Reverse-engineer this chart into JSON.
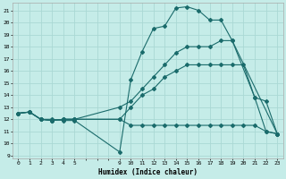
{
  "title": "",
  "xlabel": "Humidex (Indice chaleur)",
  "bg_color": "#c5ece8",
  "grid_major_color": "#aad8d4",
  "grid_minor_color": "#bce4e0",
  "line_color": "#1a6b6b",
  "xlim": [
    -0.5,
    23.5
  ],
  "ylim": [
    8.8,
    21.6
  ],
  "xticks_labeled": [
    0,
    1,
    2,
    3,
    4,
    5,
    9,
    10,
    11,
    12,
    13,
    14,
    15,
    16,
    17,
    18,
    19,
    20,
    21,
    22,
    23
  ],
  "yticks": [
    9,
    10,
    11,
    12,
    13,
    14,
    15,
    16,
    17,
    18,
    19,
    20,
    21
  ],
  "lines": [
    {
      "x": [
        0,
        1,
        2,
        3,
        4,
        5,
        9,
        10,
        11,
        12,
        13,
        14,
        15,
        16,
        17,
        18,
        19,
        23
      ],
      "y": [
        12.5,
        12.6,
        12.0,
        12.0,
        11.9,
        11.9,
        9.3,
        15.3,
        17.6,
        19.5,
        19.7,
        21.2,
        21.3,
        21.0,
        20.2,
        20.2,
        18.5,
        10.8
      ]
    },
    {
      "x": [
        0,
        1,
        2,
        3,
        4,
        5,
        9,
        10,
        11,
        12,
        13,
        14,
        15,
        16,
        17,
        18,
        19,
        21,
        22,
        23
      ],
      "y": [
        12.5,
        12.6,
        12.0,
        11.9,
        12.0,
        12.0,
        13.0,
        13.5,
        14.5,
        15.5,
        16.5,
        17.5,
        18.0,
        18.0,
        18.0,
        18.5,
        18.5,
        13.8,
        13.5,
        10.8
      ]
    },
    {
      "x": [
        0,
        1,
        2,
        3,
        4,
        5,
        9,
        10,
        11,
        12,
        13,
        14,
        15,
        16,
        17,
        18,
        19,
        20,
        21,
        22,
        23
      ],
      "y": [
        12.5,
        12.6,
        12.0,
        11.9,
        12.0,
        12.0,
        12.0,
        13.0,
        14.0,
        14.5,
        15.5,
        16.0,
        16.5,
        16.5,
        16.5,
        16.5,
        16.5,
        16.5,
        13.8,
        11.0,
        10.8
      ]
    },
    {
      "x": [
        0,
        1,
        2,
        3,
        4,
        5,
        9,
        10,
        11,
        12,
        13,
        14,
        15,
        16,
        17,
        18,
        19,
        20,
        21,
        22,
        23
      ],
      "y": [
        12.5,
        12.6,
        12.0,
        11.9,
        12.0,
        12.0,
        12.0,
        11.5,
        11.5,
        11.5,
        11.5,
        11.5,
        11.5,
        11.5,
        11.5,
        11.5,
        11.5,
        11.5,
        11.5,
        11.0,
        10.8
      ]
    }
  ]
}
